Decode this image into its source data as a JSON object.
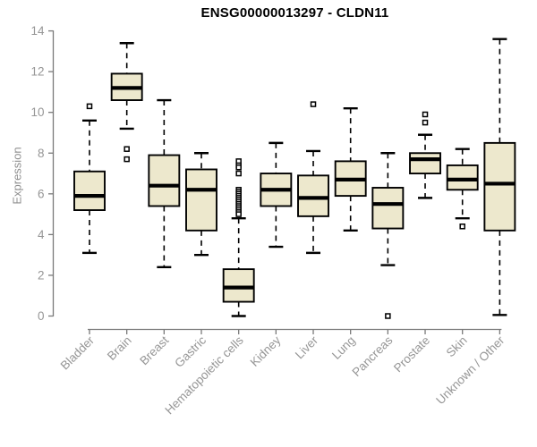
{
  "page": {
    "background": "#ffffff"
  },
  "chart_data": {
    "type": "boxplot",
    "title": "ENSG00000013297 - CLDN11",
    "ylabel": "Expression",
    "xlabel": "",
    "ylim": [
      0,
      14
    ],
    "yticks": [
      0,
      2,
      4,
      6,
      8,
      10,
      12,
      14
    ],
    "grid": false,
    "legend": "none",
    "categories": [
      "Bladder",
      "Brain",
      "Breast",
      "Gastric",
      "Hematopoietic cells",
      "Kidney",
      "Liver",
      "Lung",
      "Pancreas",
      "Prostate",
      "Skin",
      "Unknown / Other"
    ],
    "boxes": [
      {
        "category": "Bladder",
        "whisker_low": 3.1,
        "q1": 5.2,
        "median": 5.9,
        "q3": 7.1,
        "whisker_high": 9.6,
        "outliers": [
          10.3
        ]
      },
      {
        "category": "Brain",
        "whisker_low": 9.2,
        "q1": 10.6,
        "median": 11.2,
        "q3": 11.9,
        "whisker_high": 13.4,
        "outliers": [
          8.2,
          7.7
        ]
      },
      {
        "category": "Breast",
        "whisker_low": 2.4,
        "q1": 5.4,
        "median": 6.4,
        "q3": 7.9,
        "whisker_high": 10.6,
        "outliers": []
      },
      {
        "category": "Gastric",
        "whisker_low": 3.0,
        "q1": 4.2,
        "median": 6.2,
        "q3": 7.2,
        "whisker_high": 8.0,
        "outliers": []
      },
      {
        "category": "Hematopoietic cells",
        "whisker_low": 0.0,
        "q1": 0.7,
        "median": 1.4,
        "q3": 2.3,
        "whisker_high": 4.8,
        "outliers": [
          7.6,
          7.4,
          7.3,
          7.0,
          6.2,
          6.1,
          6.0,
          5.9,
          5.8,
          5.7,
          5.6,
          5.5,
          5.4,
          5.3,
          5.2,
          5.1,
          5.0
        ]
      },
      {
        "category": "Kidney",
        "whisker_low": 3.4,
        "q1": 5.4,
        "median": 6.2,
        "q3": 7.0,
        "whisker_high": 8.5,
        "outliers": []
      },
      {
        "category": "Liver",
        "whisker_low": 3.1,
        "q1": 4.9,
        "median": 5.8,
        "q3": 6.9,
        "whisker_high": 8.1,
        "outliers": [
          10.4
        ]
      },
      {
        "category": "Lung",
        "whisker_low": 4.2,
        "q1": 5.9,
        "median": 6.7,
        "q3": 7.6,
        "whisker_high": 10.2,
        "outliers": []
      },
      {
        "category": "Pancreas",
        "whisker_low": 2.5,
        "q1": 4.3,
        "median": 5.5,
        "q3": 6.3,
        "whisker_high": 8.0,
        "outliers": [
          0.0
        ]
      },
      {
        "category": "Prostate",
        "whisker_low": 5.8,
        "q1": 7.0,
        "median": 7.7,
        "q3": 8.0,
        "whisker_high": 8.9,
        "outliers": [
          9.9,
          9.5
        ]
      },
      {
        "category": "Skin",
        "whisker_low": 4.8,
        "q1": 6.2,
        "median": 6.7,
        "q3": 7.4,
        "whisker_high": 8.2,
        "outliers": [
          4.4
        ]
      },
      {
        "category": "Unknown / Other",
        "whisker_low": 0.05,
        "q1": 4.2,
        "median": 6.5,
        "q3": 8.5,
        "whisker_high": 13.6,
        "outliers": []
      }
    ]
  },
  "colors": {
    "box_fill": "#ede8cd",
    "box_stroke": "#000000",
    "median_color": "#000000",
    "whisker_color": "#000000",
    "outlier_stroke": "#000000",
    "axis_line": "#7a7a7a",
    "tick_label": "#969696",
    "title_color": "#000000"
  }
}
